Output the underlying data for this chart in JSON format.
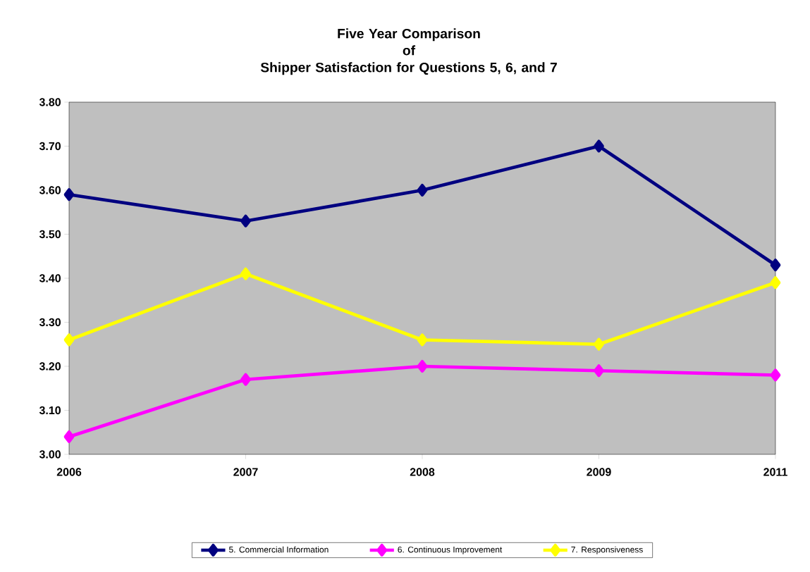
{
  "chart_data": {
    "type": "line",
    "title": "Five Year Comparison\nof\nShipper Satisfaction for Questions 5, 6, and 7",
    "categories": [
      "2006",
      "2007",
      "2008",
      "2009",
      "2011"
    ],
    "series": [
      {
        "name": "5. Commercial Information",
        "color": "#000080",
        "values": [
          3.59,
          3.53,
          3.6,
          3.7,
          3.43
        ]
      },
      {
        "name": "6. Continuous Improvement",
        "color": "#ff00ff",
        "values": [
          3.04,
          3.17,
          3.2,
          3.19,
          3.18
        ]
      },
      {
        "name": "7.  Responsiveness",
        "color": "#ffff00",
        "values": [
          3.26,
          3.41,
          3.26,
          3.25,
          3.39
        ]
      }
    ],
    "ylim": [
      3.0,
      3.8
    ],
    "yticks": [
      {
        "value": 3.0,
        "label": "3.00"
      },
      {
        "value": 3.1,
        "label": "3.10"
      },
      {
        "value": 3.2,
        "label": "3.20"
      },
      {
        "value": 3.3,
        "label": "3.30"
      },
      {
        "value": 3.4,
        "label": "3.40"
      },
      {
        "value": 3.5,
        "label": "3.50"
      },
      {
        "value": 3.6,
        "label": "3.60"
      },
      {
        "value": 3.7,
        "label": "3.70"
      },
      {
        "value": 3.8,
        "label": "3.80"
      }
    ],
    "grid": false,
    "legend": "bottom",
    "marker": "diamond",
    "line_style": "solid"
  }
}
